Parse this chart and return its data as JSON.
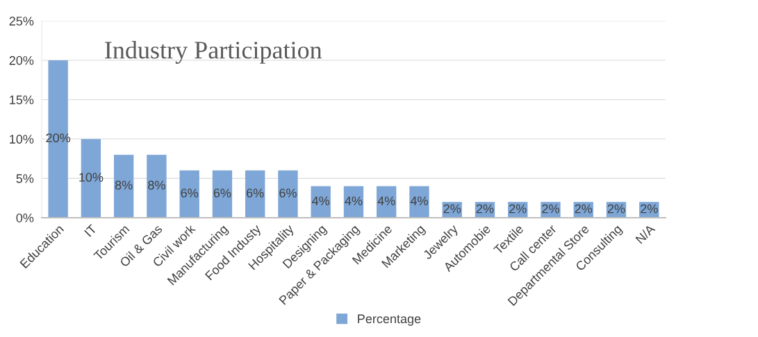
{
  "chart_data": {
    "type": "bar",
    "title": "Industry Participation",
    "categories": [
      "Education",
      "IT",
      "Tourism",
      "Oil & Gas",
      "Civil work",
      "Manufacturing",
      "Food Industy",
      "Hospitality",
      "Designing",
      "Paper & Packaging",
      "Medicine",
      "Marketing",
      "Jewelry",
      "Automobie",
      "Textile",
      "Call center",
      "Departmental Store",
      "Consulting",
      "N/A"
    ],
    "series": [
      {
        "name": "Percentage",
        "color": "#7ea6d6",
        "values": [
          20,
          10,
          8,
          8,
          6,
          6,
          6,
          6,
          4,
          4,
          4,
          4,
          2,
          2,
          2,
          2,
          2,
          2,
          2
        ],
        "value_labels": [
          "20%",
          "10%",
          "8%",
          "8%",
          "6%",
          "6%",
          "6%",
          "6%",
          "4%",
          "4%",
          "4%",
          "4%",
          "2%",
          "2%",
          "2%",
          "2%",
          "2%",
          "2%",
          "2%"
        ]
      }
    ],
    "ylim": [
      0,
      25
    ],
    "yticks": [
      {
        "value": 0,
        "label": "0%"
      },
      {
        "value": 5,
        "label": "5%"
      },
      {
        "value": 10,
        "label": "10%"
      },
      {
        "value": 15,
        "label": "15%"
      },
      {
        "value": 20,
        "label": "20%"
      },
      {
        "value": 25,
        "label": "25%"
      }
    ],
    "grid": "y",
    "legend": "bottom"
  }
}
